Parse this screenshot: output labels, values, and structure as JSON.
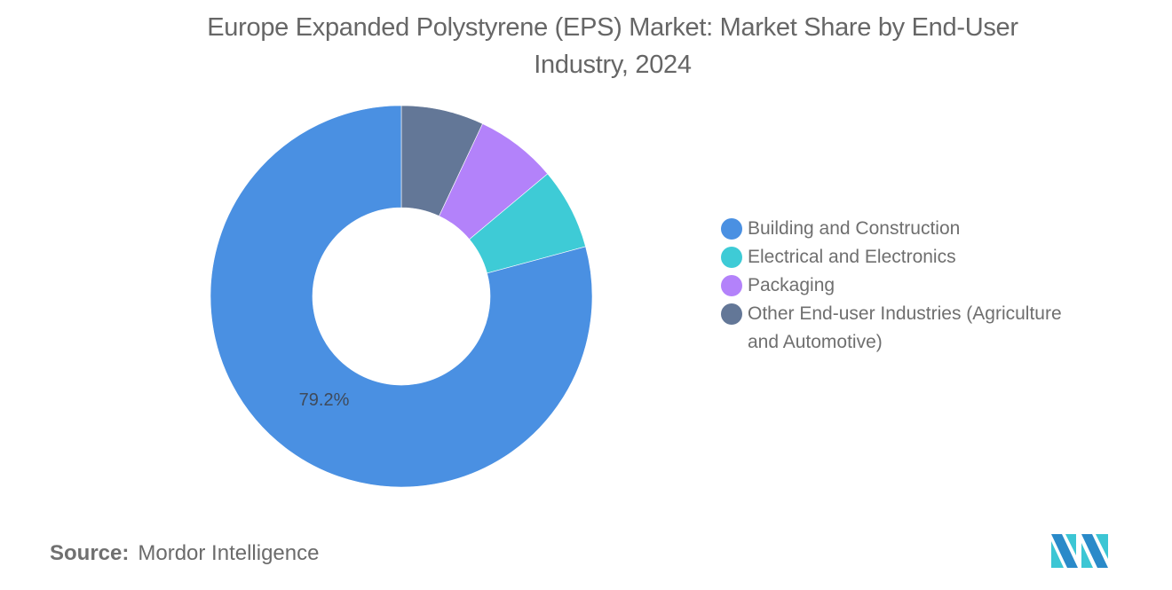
{
  "title": "Europe Expanded Polystyrene (EPS) Market: Market Share by End-User Industry, 2024",
  "title_lines": [
    "Europe Expanded Polystyrene (EPS) Market: Market Share by End-User",
    "Industry, 2024"
  ],
  "legend": {
    "items": [
      {
        "label": "Building and Construction",
        "color": "#4a90e2"
      },
      {
        "label": "Electrical and Electronics",
        "color": "#3ecbd6"
      },
      {
        "label": "Packaging",
        "color": "#b382fa"
      },
      {
        "label": "Other End-user Industries (Agriculture and Automotive)",
        "color": "#637797"
      }
    ]
  },
  "data_label": "79.2%",
  "source": {
    "key": "Source:",
    "value": "Mordor Intelligence"
  },
  "chart_data": {
    "type": "pie",
    "subtype": "donut",
    "title": "Europe Expanded Polystyrene (EPS) Market: Market Share by End-User Industry, 2024",
    "categories": [
      "Building and Construction",
      "Electrical and Electronics",
      "Packaging",
      "Other End-user Industries (Agriculture and Automotive)"
    ],
    "values": [
      79.2,
      6.9,
      6.9,
      7.0
    ],
    "colors": [
      "#4a90e2",
      "#3ecbd6",
      "#b382fa",
      "#637797"
    ],
    "data_labels": {
      "Building and Construction": "79.2%"
    },
    "legend_position": "right",
    "unit": "%"
  }
}
